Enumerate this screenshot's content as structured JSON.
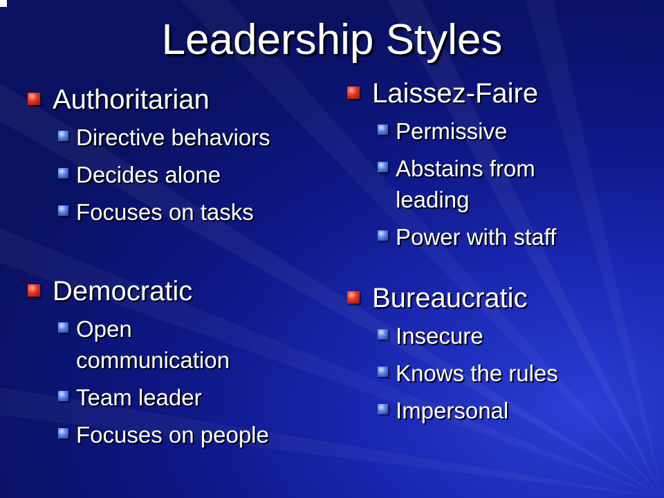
{
  "slide": {
    "title": "Leadership Styles",
    "colors": {
      "background": "#0e1784",
      "text": "#ffffff",
      "bullet_level1": "#e83b25",
      "bullet_level2": "#5f8ae8"
    },
    "icons": {
      "level1_bullet": "red-square-bullet-icon",
      "level2_bullet": "blue-square-bullet-icon"
    },
    "sections": {
      "authoritarian": {
        "heading": "Authoritarian",
        "items": [
          "Directive behaviors",
          "Decides alone",
          "Focuses on tasks"
        ]
      },
      "democratic": {
        "heading": "Democratic",
        "items": [
          "Open communication",
          "Team leader",
          "Focuses on people"
        ]
      },
      "laissez_faire": {
        "heading": "Laissez-Faire",
        "items": [
          "Permissive",
          "Abstains from leading",
          "Power with staff"
        ]
      },
      "bureaucratic": {
        "heading": "Bureaucratic",
        "items": [
          "Insecure",
          "Knows the rules",
          "Impersonal"
        ]
      }
    }
  }
}
